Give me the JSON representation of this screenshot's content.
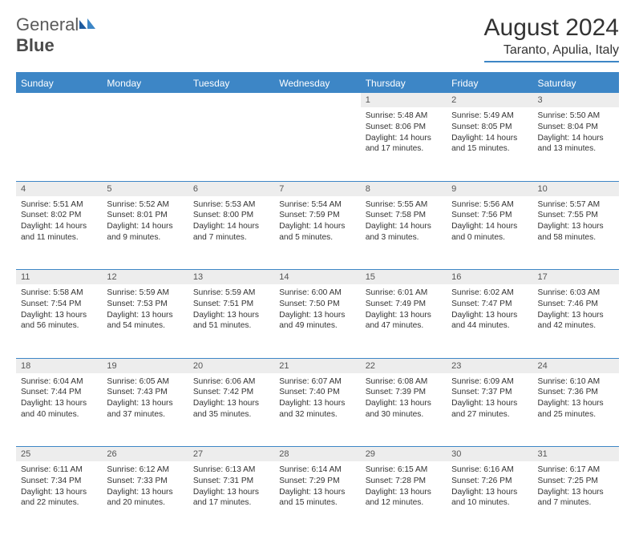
{
  "logo": {
    "part1": "General",
    "part2": "Blue"
  },
  "title": "August 2024",
  "location": "Taranto, Apulia, Italy",
  "colors": {
    "accent": "#3d86c6",
    "headerBg": "#3d86c6",
    "headerText": "#ffffff",
    "daynumBg": "#ededed",
    "text": "#333333"
  },
  "dayNames": [
    "Sunday",
    "Monday",
    "Tuesday",
    "Wednesday",
    "Thursday",
    "Friday",
    "Saturday"
  ],
  "weeks": [
    [
      null,
      null,
      null,
      null,
      {
        "n": "1",
        "sunrise": "5:48 AM",
        "sunset": "8:06 PM",
        "daylight": "14 hours and 17 minutes."
      },
      {
        "n": "2",
        "sunrise": "5:49 AM",
        "sunset": "8:05 PM",
        "daylight": "14 hours and 15 minutes."
      },
      {
        "n": "3",
        "sunrise": "5:50 AM",
        "sunset": "8:04 PM",
        "daylight": "14 hours and 13 minutes."
      }
    ],
    [
      {
        "n": "4",
        "sunrise": "5:51 AM",
        "sunset": "8:02 PM",
        "daylight": "14 hours and 11 minutes."
      },
      {
        "n": "5",
        "sunrise": "5:52 AM",
        "sunset": "8:01 PM",
        "daylight": "14 hours and 9 minutes."
      },
      {
        "n": "6",
        "sunrise": "5:53 AM",
        "sunset": "8:00 PM",
        "daylight": "14 hours and 7 minutes."
      },
      {
        "n": "7",
        "sunrise": "5:54 AM",
        "sunset": "7:59 PM",
        "daylight": "14 hours and 5 minutes."
      },
      {
        "n": "8",
        "sunrise": "5:55 AM",
        "sunset": "7:58 PM",
        "daylight": "14 hours and 3 minutes."
      },
      {
        "n": "9",
        "sunrise": "5:56 AM",
        "sunset": "7:56 PM",
        "daylight": "14 hours and 0 minutes."
      },
      {
        "n": "10",
        "sunrise": "5:57 AM",
        "sunset": "7:55 PM",
        "daylight": "13 hours and 58 minutes."
      }
    ],
    [
      {
        "n": "11",
        "sunrise": "5:58 AM",
        "sunset": "7:54 PM",
        "daylight": "13 hours and 56 minutes."
      },
      {
        "n": "12",
        "sunrise": "5:59 AM",
        "sunset": "7:53 PM",
        "daylight": "13 hours and 54 minutes."
      },
      {
        "n": "13",
        "sunrise": "5:59 AM",
        "sunset": "7:51 PM",
        "daylight": "13 hours and 51 minutes."
      },
      {
        "n": "14",
        "sunrise": "6:00 AM",
        "sunset": "7:50 PM",
        "daylight": "13 hours and 49 minutes."
      },
      {
        "n": "15",
        "sunrise": "6:01 AM",
        "sunset": "7:49 PM",
        "daylight": "13 hours and 47 minutes."
      },
      {
        "n": "16",
        "sunrise": "6:02 AM",
        "sunset": "7:47 PM",
        "daylight": "13 hours and 44 minutes."
      },
      {
        "n": "17",
        "sunrise": "6:03 AM",
        "sunset": "7:46 PM",
        "daylight": "13 hours and 42 minutes."
      }
    ],
    [
      {
        "n": "18",
        "sunrise": "6:04 AM",
        "sunset": "7:44 PM",
        "daylight": "13 hours and 40 minutes."
      },
      {
        "n": "19",
        "sunrise": "6:05 AM",
        "sunset": "7:43 PM",
        "daylight": "13 hours and 37 minutes."
      },
      {
        "n": "20",
        "sunrise": "6:06 AM",
        "sunset": "7:42 PM",
        "daylight": "13 hours and 35 minutes."
      },
      {
        "n": "21",
        "sunrise": "6:07 AM",
        "sunset": "7:40 PM",
        "daylight": "13 hours and 32 minutes."
      },
      {
        "n": "22",
        "sunrise": "6:08 AM",
        "sunset": "7:39 PM",
        "daylight": "13 hours and 30 minutes."
      },
      {
        "n": "23",
        "sunrise": "6:09 AM",
        "sunset": "7:37 PM",
        "daylight": "13 hours and 27 minutes."
      },
      {
        "n": "24",
        "sunrise": "6:10 AM",
        "sunset": "7:36 PM",
        "daylight": "13 hours and 25 minutes."
      }
    ],
    [
      {
        "n": "25",
        "sunrise": "6:11 AM",
        "sunset": "7:34 PM",
        "daylight": "13 hours and 22 minutes."
      },
      {
        "n": "26",
        "sunrise": "6:12 AM",
        "sunset": "7:33 PM",
        "daylight": "13 hours and 20 minutes."
      },
      {
        "n": "27",
        "sunrise": "6:13 AM",
        "sunset": "7:31 PM",
        "daylight": "13 hours and 17 minutes."
      },
      {
        "n": "28",
        "sunrise": "6:14 AM",
        "sunset": "7:29 PM",
        "daylight": "13 hours and 15 minutes."
      },
      {
        "n": "29",
        "sunrise": "6:15 AM",
        "sunset": "7:28 PM",
        "daylight": "13 hours and 12 minutes."
      },
      {
        "n": "30",
        "sunrise": "6:16 AM",
        "sunset": "7:26 PM",
        "daylight": "13 hours and 10 minutes."
      },
      {
        "n": "31",
        "sunrise": "6:17 AM",
        "sunset": "7:25 PM",
        "daylight": "13 hours and 7 minutes."
      }
    ]
  ],
  "labels": {
    "sunrise": "Sunrise: ",
    "sunset": "Sunset: ",
    "daylight": "Daylight: "
  }
}
